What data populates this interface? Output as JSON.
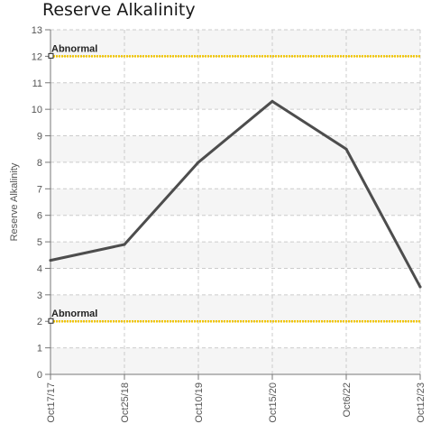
{
  "chart_data": {
    "type": "line",
    "title": "Reserve Alkalinity",
    "xlabel": "",
    "ylabel": "Reserve Alkalinity",
    "categories": [
      "Oct17/17",
      "Oct25/18",
      "Oct10/19",
      "Oct15/20",
      "Oct6/22",
      "Oct12/23"
    ],
    "series": [
      {
        "values": [
          4.3,
          4.9,
          8.0,
          10.3,
          8.5,
          3.3
        ],
        "color": "#4d4d4d"
      }
    ],
    "ylim": [
      0,
      13
    ],
    "yticks": [
      0,
      1,
      2,
      3,
      4,
      5,
      6,
      7,
      8,
      9,
      10,
      11,
      12,
      13
    ],
    "grid": true,
    "reference_lines": [
      {
        "label": "Abnormal",
        "value": 12,
        "color": "#f2c500"
      },
      {
        "label": "Abnormal",
        "value": 2,
        "color": "#f2c500"
      }
    ]
  }
}
